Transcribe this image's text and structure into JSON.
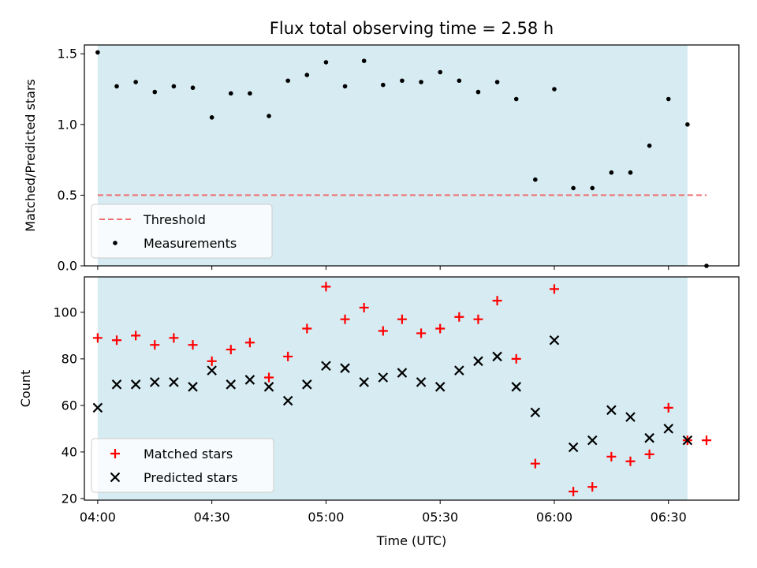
{
  "chart_data": {
    "title": "Flux total observing time = 2.58 h",
    "xlabel": "Time (UTC)",
    "x_ticks": [
      "04:00",
      "04:30",
      "05:00",
      "05:30",
      "06:00",
      "06:30"
    ],
    "x_tick_minutes": [
      0,
      30,
      60,
      90,
      120,
      150
    ],
    "xlim_minutes": [
      -3.5,
      168.5
    ],
    "shaded_span_minutes": [
      0,
      155
    ],
    "shaded_color": "#add8e6",
    "panels": [
      {
        "type": "scatter",
        "ylabel": "Matched/Predicted stars",
        "ylim": [
          0,
          1.5625
        ],
        "y_ticks": [
          0.0,
          0.5,
          1.0,
          1.5
        ],
        "y_tick_labels": [
          "0.0",
          "0.5",
          "1.0",
          "1.5"
        ],
        "threshold": {
          "name": "Threshold",
          "value": 0.5,
          "x_range": [
            0,
            160
          ],
          "color": "#f07070"
        },
        "series": [
          {
            "name": "Measurements",
            "marker": "dot",
            "color": "#000000",
            "x": [
              0,
              5,
              10,
              15,
              20,
              25,
              30,
              35,
              40,
              45,
              50,
              55,
              60,
              65,
              70,
              75,
              80,
              85,
              90,
              95,
              100,
              105,
              110,
              115,
              120,
              125,
              130,
              135,
              140,
              145,
              150,
              155,
              160
            ],
            "y": [
              1.51,
              1.27,
              1.3,
              1.23,
              1.27,
              1.26,
              1.05,
              1.22,
              1.22,
              1.06,
              1.31,
              1.35,
              1.44,
              1.27,
              1.45,
              1.28,
              1.31,
              1.3,
              1.37,
              1.31,
              1.23,
              1.3,
              1.18,
              0.61,
              1.25,
              0.55,
              0.55,
              0.66,
              0.66,
              0.85,
              1.18,
              1.0,
              0.0
            ]
          }
        ],
        "legend_position": "lower-left"
      },
      {
        "type": "scatter",
        "ylabel": "Count",
        "ylim": [
          19.3,
          115.2
        ],
        "y_ticks": [
          20,
          40,
          60,
          80,
          100
        ],
        "y_tick_labels": [
          "20",
          "40",
          "60",
          "80",
          "100"
        ],
        "series": [
          {
            "name": "Matched stars",
            "marker": "plus",
            "color": "#ff0000",
            "x": [
              0,
              5,
              10,
              15,
              20,
              25,
              30,
              35,
              40,
              45,
              50,
              55,
              60,
              65,
              70,
              75,
              80,
              85,
              90,
              95,
              100,
              105,
              110,
              115,
              120,
              125,
              130,
              135,
              140,
              145,
              150,
              155,
              160
            ],
            "y": [
              89,
              88,
              90,
              86,
              89,
              86,
              79,
              84,
              87,
              72,
              81,
              93,
              111,
              97,
              102,
              92,
              97,
              91,
              93,
              98,
              97,
              105,
              80,
              35,
              110,
              23,
              25,
              38,
              36,
              39,
              59,
              45,
              45
            ]
          },
          {
            "name": "Predicted stars",
            "marker": "x",
            "color": "#000000",
            "x": [
              0,
              5,
              10,
              15,
              20,
              25,
              30,
              35,
              40,
              45,
              50,
              55,
              60,
              65,
              70,
              75,
              80,
              85,
              90,
              95,
              100,
              105,
              110,
              115,
              120,
              125,
              130,
              135,
              140,
              145,
              150,
              155
            ],
            "y": [
              59,
              69,
              69,
              70,
              70,
              68,
              75,
              69,
              71,
              68,
              62,
              69,
              77,
              76,
              70,
              72,
              74,
              70,
              68,
              75,
              79,
              81,
              68,
              57,
              88,
              42,
              45,
              58,
              55,
              46,
              50,
              45
            ]
          }
        ],
        "legend_position": "lower-left"
      }
    ]
  }
}
